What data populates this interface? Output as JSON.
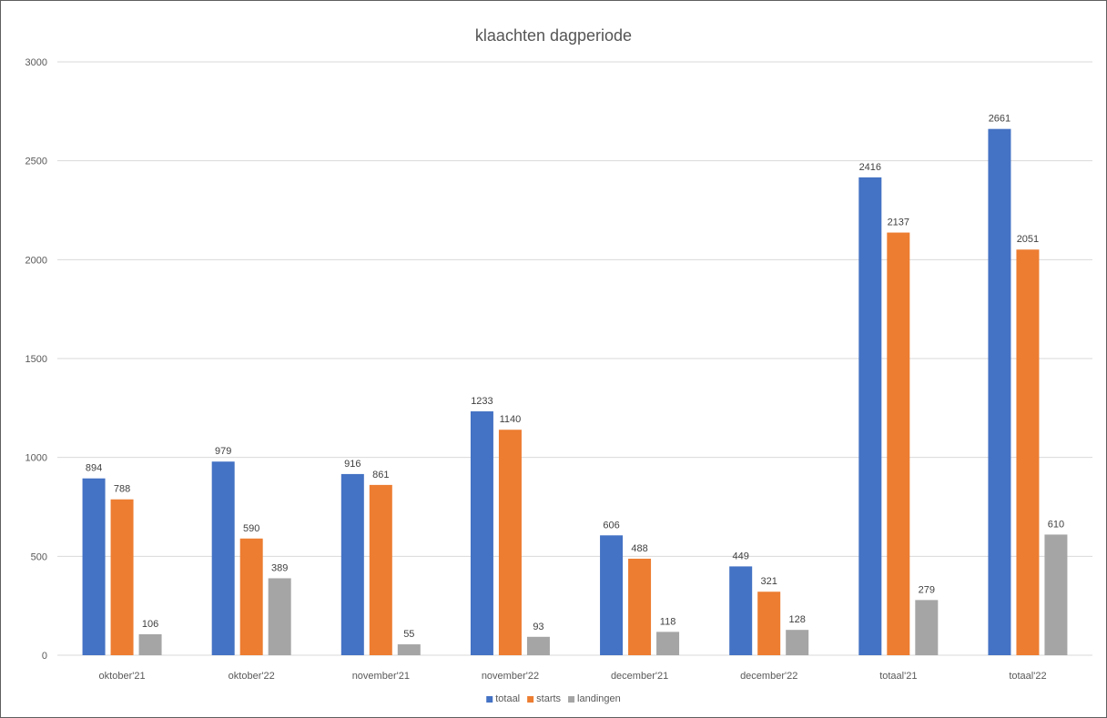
{
  "chart_data": {
    "type": "bar",
    "title": "klaachten dagperiode",
    "categories": [
      "oktober'21",
      "oktober'22",
      "november'21",
      "november'22",
      "december'21",
      "december'22",
      "totaal'21",
      "totaal'22"
    ],
    "series": [
      {
        "name": "totaal",
        "color": "#4472c4",
        "values": [
          894,
          979,
          916,
          1233,
          606,
          449,
          2416,
          2661
        ]
      },
      {
        "name": "starts",
        "color": "#ed7d31",
        "values": [
          788,
          590,
          861,
          1140,
          488,
          321,
          2137,
          2051
        ]
      },
      {
        "name": "landingen",
        "color": "#a5a5a5",
        "values": [
          106,
          389,
          55,
          93,
          118,
          128,
          279,
          610
        ]
      }
    ],
    "yticks": [
      0,
      500,
      1000,
      1500,
      2000,
      2500,
      3000
    ],
    "ylim": [
      0,
      3000
    ],
    "xlabel": "",
    "ylabel": "",
    "grid": true,
    "legend": "bottom",
    "data_labels": true
  }
}
